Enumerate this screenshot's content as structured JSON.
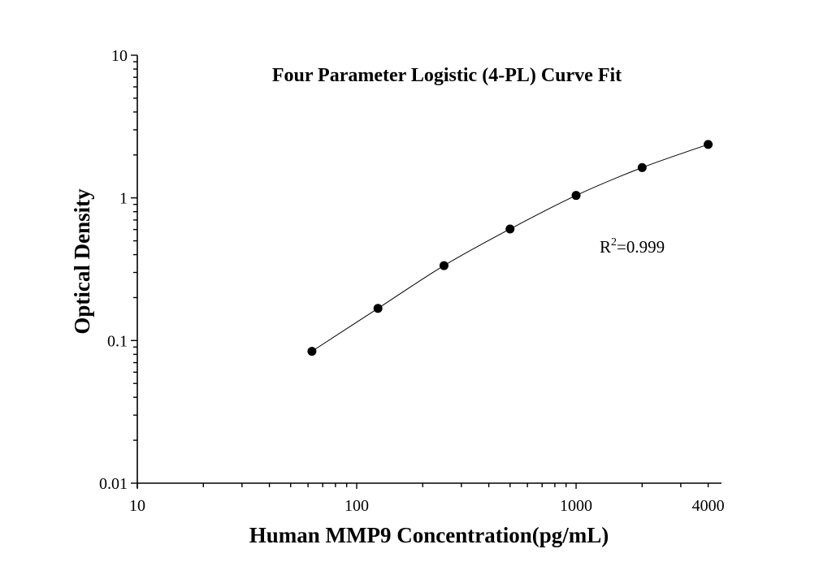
{
  "chart_data": {
    "type": "scatter",
    "title": "Four Parameter Logistic (4-PL) Curve Fit",
    "xlabel": "Human MMP9 Concentration(pg/mL)",
    "ylabel": "Optical Density",
    "xscale": "log",
    "yscale": "log",
    "xlim": [
      10,
      4600
    ],
    "ylim": [
      0.01,
      10
    ],
    "xticks": [
      10,
      100,
      1000,
      4000
    ],
    "xtick_labels": [
      "10",
      "100",
      "1000",
      "4000"
    ],
    "yticks": [
      0.01,
      0.1,
      1,
      10
    ],
    "ytick_labels": [
      "0.01",
      "0.1",
      "1",
      "10"
    ],
    "grid": false,
    "legend": "none",
    "series": [
      {
        "x": [
          62.5,
          125,
          250,
          500,
          1000,
          2000,
          4000
        ],
        "y": [
          0.084,
          0.168,
          0.335,
          0.605,
          1.04,
          1.63,
          2.37
        ],
        "marker": "filled-circle",
        "fit_line": "4-PL",
        "color": "#000000"
      }
    ],
    "annotation": {
      "text_base": "R",
      "text_sup": "2",
      "text_rest": "=0.999"
    }
  }
}
